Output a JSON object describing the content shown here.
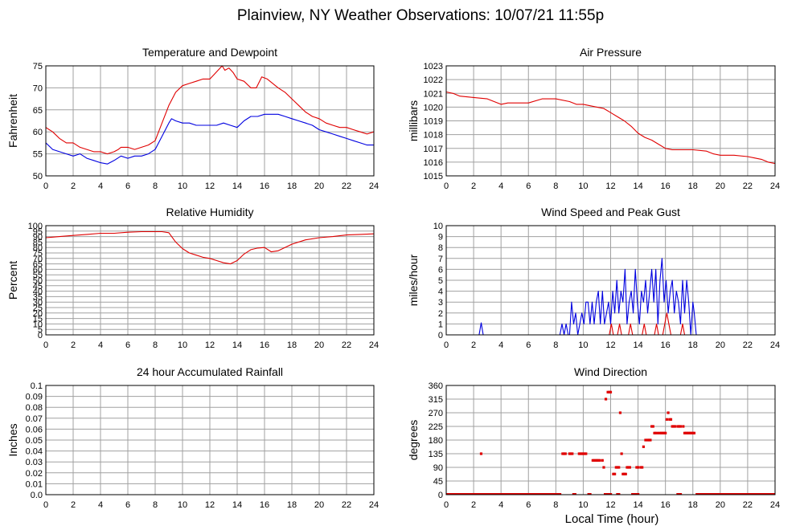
{
  "page": {
    "title": "Plainview, NY Weather Observations: 10/07/21 11:55p",
    "x_axis_label": "Local Time (hour)"
  },
  "colors": {
    "red": "#e00000",
    "blue": "#0000e0",
    "grid": "#a0a0a0",
    "frame": "#000000"
  },
  "chart_data": [
    {
      "id": "temperature",
      "type": "line",
      "title": "Temperature and Dewpoint",
      "xlabel": "",
      "ylabel": "Fahrenheit",
      "xlim": [
        0,
        24
      ],
      "ylim": [
        50,
        75
      ],
      "x_ticks": [
        0,
        2,
        4,
        6,
        8,
        10,
        12,
        14,
        16,
        18,
        20,
        22,
        24
      ],
      "y_ticks": [
        50,
        55,
        60,
        65,
        70,
        75
      ],
      "grid": true,
      "series": [
        {
          "color": "red",
          "x": [
            0,
            0.5,
            1,
            1.5,
            2,
            2.5,
            3,
            3.5,
            4,
            4.5,
            5,
            5.3,
            5.5,
            6,
            6.5,
            7,
            7.5,
            8,
            8.5,
            9,
            9.5,
            10,
            10.5,
            11,
            11.5,
            12,
            12.3,
            12.6,
            12.9,
            13.1,
            13.4,
            13.7,
            14,
            14.5,
            15,
            15.4,
            15.8,
            16.2,
            16.6,
            17,
            17.5,
            18,
            18.5,
            19,
            19.5,
            20,
            20.5,
            21,
            21.5,
            22,
            22.5,
            23,
            23.5,
            24
          ],
          "y": [
            61,
            60,
            58.5,
            57.5,
            57.5,
            56.5,
            56,
            55.5,
            55.5,
            55,
            55.5,
            56,
            56.5,
            56.5,
            56,
            56.5,
            57,
            58,
            62,
            66,
            69,
            70.5,
            71,
            71.5,
            72,
            72,
            73,
            74,
            75,
            74,
            74.5,
            73.5,
            72,
            71.5,
            70,
            70,
            72.5,
            72,
            71,
            70,
            69,
            67.5,
            66,
            64.5,
            63.5,
            63,
            62,
            61.5,
            61,
            61,
            60.5,
            60,
            59.5,
            60
          ]
        },
        {
          "color": "blue",
          "x": [
            0,
            0.5,
            1,
            1.5,
            2,
            2.5,
            3,
            3.5,
            4,
            4.5,
            5,
            5.5,
            6,
            6.5,
            7,
            7.5,
            8,
            8.5,
            9,
            9.2,
            9.5,
            10,
            10.5,
            11,
            11.5,
            12,
            12.5,
            13,
            13.5,
            14,
            14.5,
            15,
            15.5,
            16,
            16.5,
            17,
            17.5,
            18,
            18.5,
            19,
            19.5,
            20,
            20.5,
            21,
            21.5,
            22,
            22.5,
            23,
            23.5,
            24
          ],
          "y": [
            57.5,
            56,
            55.5,
            55,
            54.5,
            55,
            54,
            53.5,
            53,
            52.7,
            53.5,
            54.5,
            54,
            54.5,
            54.5,
            55,
            56,
            59,
            62,
            63,
            62.5,
            62,
            62,
            61.5,
            61.5,
            61.5,
            61.5,
            62,
            61.5,
            61,
            62.5,
            63.5,
            63.5,
            64,
            64,
            64,
            63.5,
            63,
            62.5,
            62,
            61.5,
            60.5,
            60,
            59.5,
            59,
            58.5,
            58,
            57.5,
            57,
            57
          ]
        }
      ]
    },
    {
      "id": "pressure",
      "type": "line",
      "title": "Air Pressure",
      "xlabel": "",
      "ylabel": "millibars",
      "xlim": [
        0,
        24
      ],
      "ylim": [
        1015,
        1023
      ],
      "x_ticks": [
        0,
        2,
        4,
        6,
        8,
        10,
        12,
        14,
        16,
        18,
        20,
        22,
        24
      ],
      "y_ticks": [
        1015,
        1016,
        1017,
        1018,
        1019,
        1020,
        1021,
        1022,
        1023
      ],
      "grid": true,
      "series": [
        {
          "color": "red",
          "x": [
            0,
            0.5,
            1,
            2,
            3,
            3.5,
            4,
            4.5,
            5,
            6,
            7,
            8,
            9,
            9.5,
            10,
            11,
            11.5,
            12,
            12.5,
            13,
            13.5,
            14,
            14.5,
            15,
            15.5,
            16,
            16.5,
            17,
            18,
            19,
            19.5,
            20,
            21,
            22,
            22.5,
            23,
            23.5,
            24
          ],
          "y": [
            1021.1,
            1021,
            1020.8,
            1020.7,
            1020.6,
            1020.4,
            1020.2,
            1020.3,
            1020.3,
            1020.3,
            1020.6,
            1020.6,
            1020.4,
            1020.2,
            1020.2,
            1020,
            1019.9,
            1019.6,
            1019.3,
            1019,
            1018.6,
            1018.1,
            1017.8,
            1017.6,
            1017.3,
            1017,
            1016.9,
            1016.9,
            1016.9,
            1016.8,
            1016.6,
            1016.5,
            1016.5,
            1016.4,
            1016.3,
            1016.2,
            1016.0,
            1015.9
          ]
        }
      ]
    },
    {
      "id": "humidity",
      "type": "line",
      "title": "Relative Humidity",
      "xlabel": "",
      "ylabel": "Percent",
      "xlim": [
        0,
        24
      ],
      "ylim": [
        0,
        100
      ],
      "x_ticks": [
        0,
        2,
        4,
        6,
        8,
        10,
        12,
        14,
        16,
        18,
        20,
        22,
        24
      ],
      "y_ticks": [
        0,
        5,
        10,
        15,
        20,
        25,
        30,
        35,
        40,
        45,
        50,
        55,
        60,
        65,
        70,
        75,
        80,
        85,
        90,
        95,
        100
      ],
      "grid": true,
      "series": [
        {
          "color": "red",
          "x": [
            0,
            0.5,
            1,
            2,
            3,
            4,
            5,
            6,
            7,
            8,
            8.5,
            9,
            9.5,
            10,
            10.5,
            11,
            11.5,
            12,
            12.5,
            13,
            13.5,
            14,
            14.5,
            15,
            15.5,
            16,
            16.5,
            17,
            18,
            19,
            20,
            21,
            22,
            23,
            24
          ],
          "y": [
            89,
            89.5,
            90,
            91,
            92,
            93,
            93,
            94,
            94.5,
            94.5,
            94.5,
            93.5,
            85,
            79,
            75,
            73,
            71,
            70,
            68,
            66,
            65,
            68,
            74,
            78,
            79.5,
            80,
            76,
            77,
            83,
            87,
            89,
            90,
            91.5,
            92,
            92.5
          ]
        }
      ]
    },
    {
      "id": "wind_speed",
      "type": "line",
      "title": "Wind Speed and Peak Gust",
      "xlabel": "",
      "ylabel": "miles/hour",
      "xlim": [
        0,
        24
      ],
      "ylim": [
        0,
        10
      ],
      "x_ticks": [
        0,
        2,
        4,
        6,
        8,
        10,
        12,
        14,
        16,
        18,
        20,
        22,
        24
      ],
      "y_ticks": [
        0,
        1,
        2,
        3,
        4,
        5,
        6,
        7,
        8,
        9,
        10
      ],
      "grid": true,
      "series": [
        {
          "color": "blue",
          "x": [
            0,
            2.4,
            2.55,
            2.7,
            8.3,
            8.45,
            8.6,
            8.75,
            8.9,
            9.0,
            9.15,
            9.3,
            9.45,
            9.6,
            9.75,
            9.9,
            10.05,
            10.2,
            10.35,
            10.5,
            10.65,
            10.8,
            10.95,
            11.1,
            11.25,
            11.4,
            11.55,
            11.7,
            11.85,
            12.0,
            12.15,
            12.3,
            12.45,
            12.6,
            12.75,
            12.9,
            13.05,
            13.2,
            13.35,
            13.5,
            13.65,
            13.8,
            13.95,
            14.1,
            14.25,
            14.4,
            14.55,
            14.7,
            14.85,
            15.0,
            15.15,
            15.3,
            15.45,
            15.6,
            15.75,
            15.9,
            16.05,
            16.2,
            16.35,
            16.5,
            16.65,
            16.8,
            16.95,
            17.1,
            17.25,
            17.4,
            17.55,
            17.7,
            17.85,
            18.0,
            18.1,
            18.25,
            18.4,
            24
          ],
          "y": [
            0,
            0,
            1.1,
            0,
            0,
            1,
            0,
            1,
            0,
            0,
            3,
            1,
            2,
            0,
            1,
            2,
            1,
            3,
            3,
            1,
            3,
            1,
            3,
            4,
            1,
            4,
            1,
            2,
            3,
            1,
            4,
            2,
            5,
            2,
            4,
            3,
            6,
            1,
            3,
            4,
            2,
            6,
            3,
            1,
            4,
            3,
            5,
            2,
            4,
            6,
            3,
            6,
            1,
            5,
            7,
            3,
            5,
            2,
            4,
            5,
            2,
            4,
            3,
            1,
            5,
            2,
            5,
            3,
            0,
            3,
            2,
            0,
            0,
            0
          ]
        },
        {
          "color": "red",
          "x": [
            0,
            11.9,
            12.05,
            12.2,
            12.5,
            12.65,
            12.8,
            13.3,
            13.45,
            13.6,
            14.3,
            14.45,
            14.6,
            15.2,
            15.35,
            15.5,
            15.8,
            15.95,
            16.1,
            16.25,
            16.4,
            17.1,
            17.25,
            17.4,
            24
          ],
          "y": [
            0,
            0,
            1,
            0,
            0,
            1,
            0,
            0,
            1,
            0,
            0,
            1,
            0,
            0,
            1,
            0,
            0,
            1,
            2,
            1,
            0,
            0,
            1,
            0,
            0
          ]
        }
      ]
    },
    {
      "id": "rainfall",
      "type": "line",
      "title": "24 hour Accumulated Rainfall",
      "xlabel": "",
      "ylabel": "Inches",
      "xlim": [
        0,
        24
      ],
      "ylim": [
        0,
        0.1
      ],
      "x_ticks": [
        0,
        2,
        4,
        6,
        8,
        10,
        12,
        14,
        16,
        18,
        20,
        22,
        24
      ],
      "y_ticks": [
        "0.0",
        "0.01",
        "0.02",
        "0.03",
        "0.04",
        "0.05",
        "0.06",
        "0.07",
        "0.08",
        "0.09",
        "0.1"
      ],
      "grid": true,
      "series": [
        {
          "color": "red",
          "x": [
            0,
            24
          ],
          "y": [
            0,
            0
          ]
        }
      ]
    },
    {
      "id": "wind_direction",
      "type": "scatter",
      "title": "Wind Direction",
      "xlabel": "Local Time (hour)",
      "ylabel": "degrees",
      "xlim": [
        0,
        24
      ],
      "ylim": [
        0,
        360
      ],
      "x_ticks": [
        0,
        2,
        4,
        6,
        8,
        10,
        12,
        14,
        16,
        18,
        20,
        22,
        24
      ],
      "y_ticks": [
        0,
        45,
        90,
        135,
        180,
        225,
        270,
        315,
        360
      ],
      "grid": true,
      "baseline_zero": [
        [
          0,
          8.4
        ],
        [
          9.2,
          9.5
        ],
        [
          10.3,
          10.6
        ],
        [
          11.5,
          12.1
        ],
        [
          12.4,
          12.7
        ],
        [
          13.5,
          14.1
        ],
        [
          16.8,
          17.2
        ],
        [
          18.2,
          24
        ]
      ],
      "series": [
        {
          "color": "red",
          "x": [
            2.55,
            8.5,
            8.6,
            8.7,
            9.0,
            9.1,
            9.2,
            9.7,
            9.8,
            9.9,
            10.0,
            10.1,
            10.2,
            10.7,
            10.8,
            10.9,
            11.0,
            11.1,
            11.2,
            11.4,
            11.5,
            11.65,
            11.8,
            11.9,
            12.0,
            12.2,
            12.3,
            12.4,
            12.5,
            12.6,
            12.7,
            12.8,
            12.9,
            13.0,
            13.1,
            13.2,
            13.3,
            13.4,
            13.9,
            14.0,
            14.2,
            14.3,
            14.4,
            14.55,
            14.7,
            14.8,
            14.9,
            15.0,
            15.1,
            15.2,
            15.3,
            15.45,
            15.6,
            15.7,
            15.8,
            15.9,
            16.0,
            16.1,
            16.2,
            16.3,
            16.4,
            16.5,
            16.6,
            16.7,
            16.9,
            17.0,
            17.1,
            17.3,
            17.4,
            17.5,
            17.6,
            17.7,
            17.8,
            17.9,
            18.0,
            18.1
          ],
          "y": [
            135,
            135,
            135,
            135,
            135,
            135,
            135,
            135,
            135,
            135,
            135,
            135,
            135,
            113,
            113,
            113,
            113,
            113,
            113,
            113,
            90,
            315,
            338,
            338,
            338,
            68,
            68,
            90,
            90,
            90,
            270,
            135,
            68,
            68,
            68,
            90,
            90,
            90,
            90,
            90,
            90,
            90,
            158,
            180,
            180,
            180,
            180,
            225,
            225,
            203,
            203,
            203,
            203,
            203,
            203,
            203,
            203,
            248,
            270,
            248,
            248,
            225,
            225,
            225,
            225,
            225,
            225,
            225,
            203,
            203,
            203,
            203,
            203,
            203,
            203,
            203
          ]
        }
      ]
    }
  ]
}
